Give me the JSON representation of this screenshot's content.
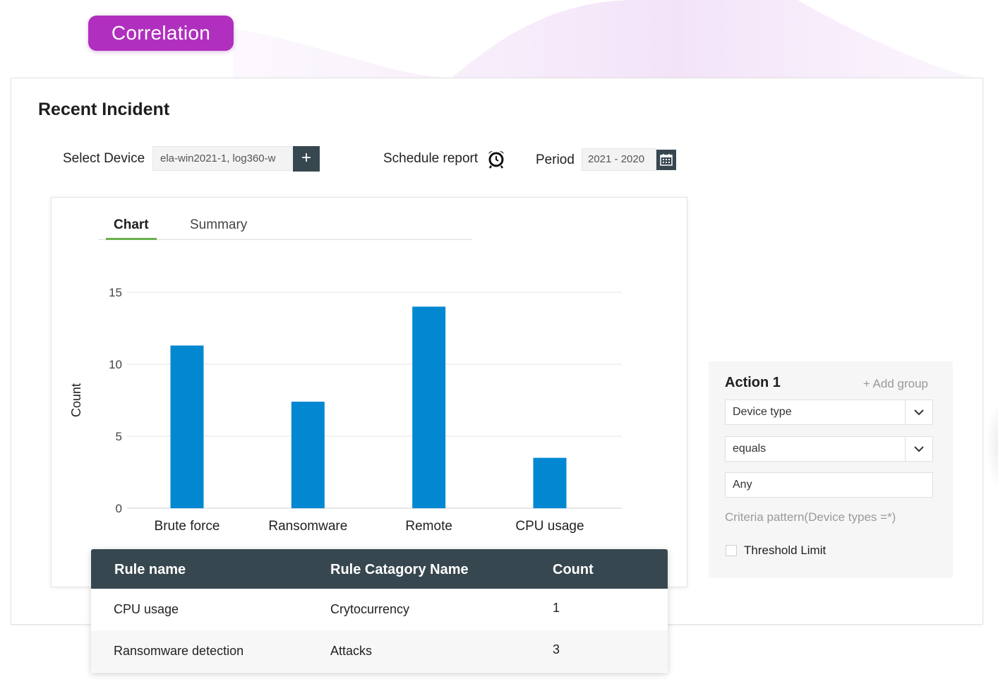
{
  "header": {
    "badge_label": "Correlation"
  },
  "card": {
    "title": "Recent Incident",
    "select_device_label": "Select Device",
    "device_value": "ela-win2021-1, log360-w",
    "add_label": "+",
    "schedule_label": "Schedule report",
    "period_label": "Period",
    "period_value": "2021 - 2020"
  },
  "tabs": [
    {
      "label": "Chart",
      "active": true
    },
    {
      "label": "Summary",
      "active": false
    }
  ],
  "chart_data": {
    "type": "bar",
    "categories": [
      "Brute force",
      "Ransomware",
      "Remote",
      "CPU usage"
    ],
    "values": [
      11.3,
      7.4,
      14,
      3.5
    ],
    "ylabel": "Count",
    "xlabel": "",
    "ylim": [
      0,
      15
    ],
    "yticks": [
      0,
      5,
      10,
      15
    ],
    "grid": true,
    "bar_color": "#0288d1"
  },
  "table": {
    "headers": [
      "Rule name",
      "Rule Catagory Name",
      "Count"
    ],
    "rows": [
      [
        "CPU usage",
        "Crytocurrency",
        "1"
      ],
      [
        "Ransomware detection",
        "Attacks",
        "3"
      ]
    ]
  },
  "action": {
    "title": "Action 1",
    "add_group": "+ Add group",
    "device_type": "Device type",
    "operator": "equals",
    "value": "Any",
    "criteria": "Criteria pattern(Device types =*)",
    "threshold_label": "Threshold Limit",
    "threshold_checked": false
  },
  "colors": {
    "accent": "#b02fbf",
    "dark": "#37474f",
    "tab_active": "#6ab04c"
  }
}
